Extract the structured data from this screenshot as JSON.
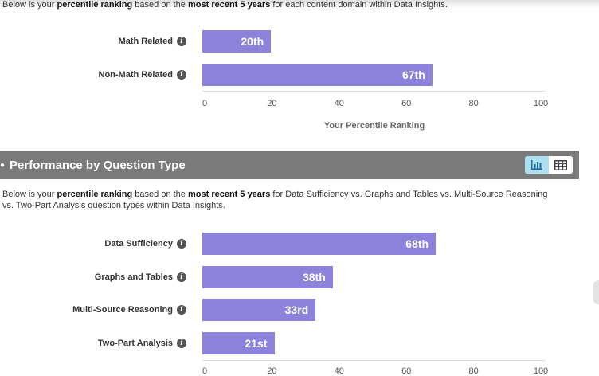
{
  "domain_section": {
    "intro": {
      "prefix": "Below is your ",
      "bold1": "percentile ranking",
      "mid": " based on the ",
      "bold2": "most recent 5 years",
      "suffix": " for each content domain within Data Insights."
    },
    "chart_data": {
      "type": "bar",
      "orientation": "horizontal",
      "categories": [
        "Math Related",
        "Non-Math Related"
      ],
      "values": [
        20,
        67
      ],
      "value_labels": [
        "20th",
        "67th"
      ],
      "xlim": [
        0,
        100
      ],
      "ticks": [
        "0",
        "20",
        "40",
        "60",
        "80",
        "100"
      ],
      "xlabel": "Your Percentile Ranking",
      "bar_color": "#8c82dc"
    }
  },
  "question_type_section": {
    "title": "Performance by Question Type",
    "view_toggle": {
      "chart_icon": "bar-chart-icon",
      "table_icon": "table-icon",
      "active": "chart"
    },
    "intro": {
      "prefix": "Below is your ",
      "bold1": "percentile ranking",
      "mid": " based on the ",
      "bold2": "most recent 5 years",
      "suffix_line1": " for Data Sufficiency vs. Graphs and Tables vs. Multi-Source Reasoning",
      "line2": "vs. Two-Part Analysis question types within Data Insights."
    },
    "chart_data": {
      "type": "bar",
      "orientation": "horizontal",
      "categories": [
        "Data Sufficiency",
        "Graphs and Tables",
        "Multi-Source Reasoning",
        "Two-Part Analysis"
      ],
      "values": [
        68,
        38,
        33,
        21
      ],
      "value_labels": [
        "68th",
        "38th",
        "33rd",
        "21st"
      ],
      "xlim": [
        0,
        100
      ],
      "ticks": [
        "0",
        "20",
        "40",
        "60",
        "80",
        "100"
      ],
      "bar_color": "#8c82dc"
    }
  },
  "colors": {
    "header_bg": "#7a7a7a",
    "bar": "#8c82dc",
    "toggle_active": "#aee0f3"
  }
}
